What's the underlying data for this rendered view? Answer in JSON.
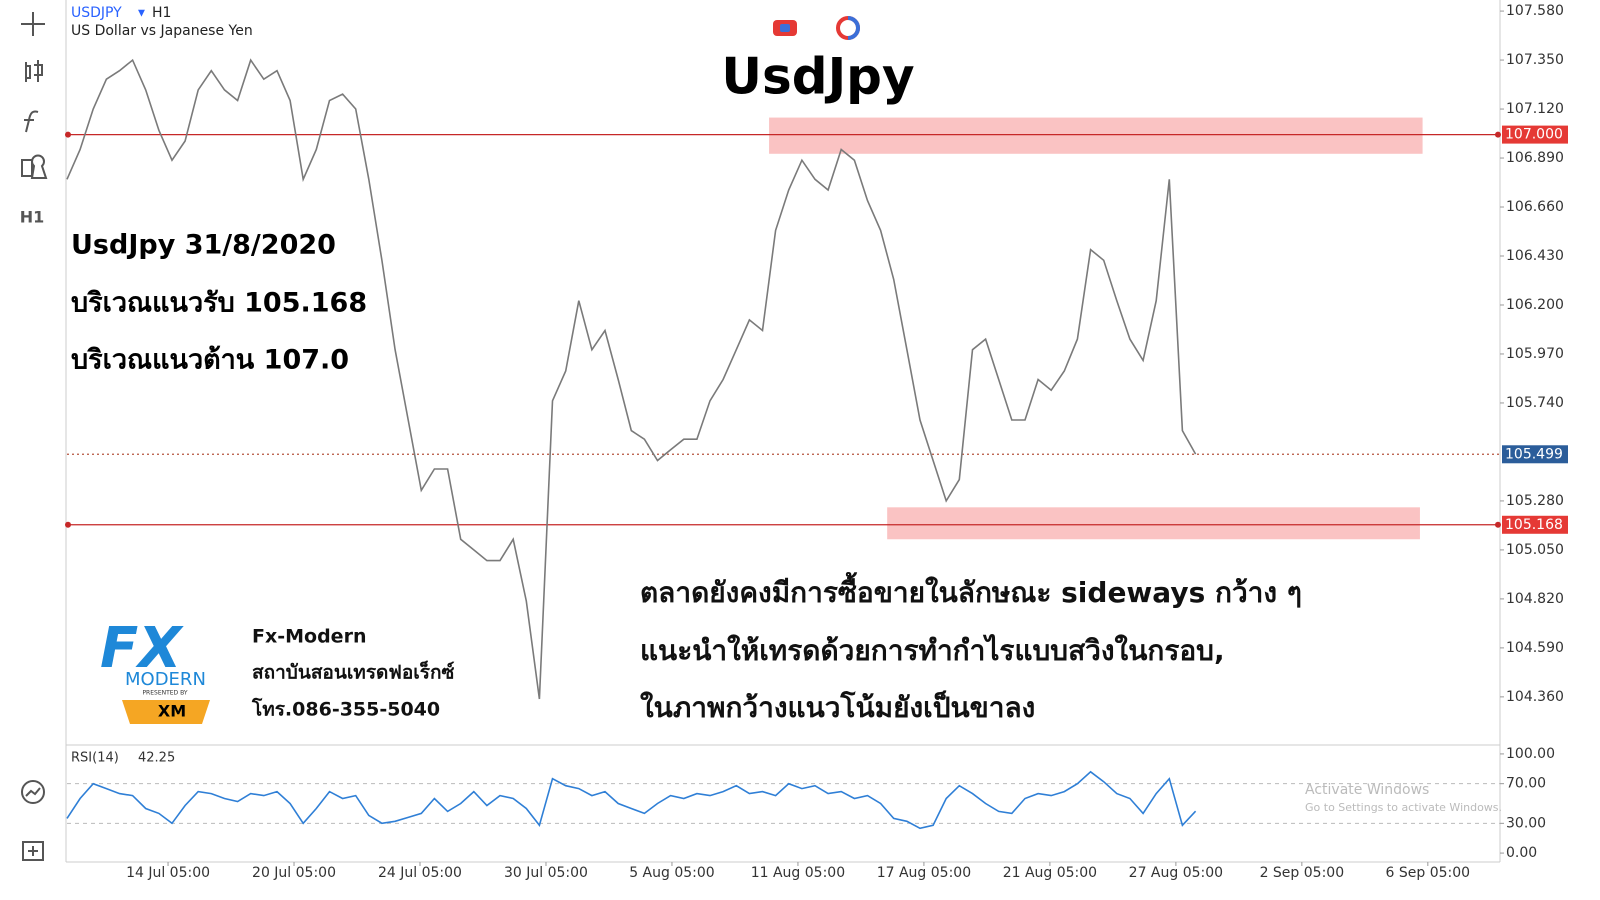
{
  "header": {
    "symbol": "USDJPY",
    "timeframe": "H1",
    "description": "US Dollar vs Japanese Yen"
  },
  "toolbar": {
    "timeframe": "H1"
  },
  "annotations": {
    "heading": "UsdJpy",
    "left_lines": [
      "UsdJpy 31/8/2020",
      "บริเวณแนวรับ 105.168",
      "บริเวณแนวต้าน 107.0"
    ],
    "bottom_lines": [
      "ตลาดยังคงมีการซื้อขายในลักษณะ sideways กว้าง ๆ",
      "แนะนำให้เทรดด้วยการทำกำไรแบบสวิงในกรอบ,",
      "ในภาพกว้างแนวโน้มยังเป็นขาลง"
    ]
  },
  "logo": {
    "mark": "FX",
    "word": "MODERN",
    "presented": "PRESENTED BY",
    "broker": "XM",
    "lines": [
      "Fx-Modern",
      "สถาบันสอนเทรดฟอเร็กซ์",
      "โทร.086-355-5040"
    ]
  },
  "watermark": {
    "title": "Activate Windows",
    "text": "Go to Settings to activate Windows."
  },
  "chart_data": [
    {
      "type": "line",
      "x": [
        0,
        10,
        20,
        30,
        40,
        50,
        60,
        70,
        80,
        90,
        100,
        110,
        120,
        130,
        140,
        150,
        160,
        170,
        180,
        190,
        200,
        210,
        220,
        230,
        240,
        250,
        260,
        270,
        280,
        290,
        300,
        310,
        320,
        330,
        340,
        350,
        360,
        370,
        380,
        390,
        400,
        410,
        420,
        430,
        440,
        450,
        460,
        470,
        480,
        490,
        500,
        510,
        520,
        530,
        540,
        550,
        560,
        570,
        580,
        590,
        600,
        610,
        620,
        630,
        640,
        650,
        660,
        670,
        680,
        690,
        700,
        710,
        720,
        730,
        740,
        750,
        760,
        770,
        780,
        790,
        800,
        810,
        820,
        830,
        840,
        850,
        860
      ],
      "series": [
        {
          "color": "#7a7a7a",
          "values": [
            106.79,
            106.93,
            107.12,
            107.26,
            107.3,
            107.35,
            107.21,
            107.02,
            106.88,
            106.97,
            107.21,
            107.3,
            107.21,
            107.16,
            107.35,
            107.26,
            107.3,
            107.16,
            106.79,
            106.93,
            107.16,
            107.19,
            107.12,
            106.79,
            106.41,
            105.99,
            105.66,
            105.33,
            105.43,
            105.43,
            105.1,
            105.05,
            105.0,
            105.0,
            105.1,
            104.81,
            104.35,
            105.75,
            105.89,
            106.22,
            105.99,
            106.08,
            105.85,
            105.61,
            105.57,
            105.47,
            105.52,
            105.57,
            105.57,
            105.75,
            105.85,
            105.99,
            106.13,
            106.08,
            106.55,
            106.74,
            106.88,
            106.79,
            106.74,
            106.93,
            106.88,
            106.69,
            106.55,
            106.32,
            105.99,
            105.66,
            105.47,
            105.28,
            105.38,
            105.99,
            106.04,
            105.85,
            105.66,
            105.66,
            105.85,
            105.8,
            105.89,
            106.04,
            106.46,
            106.41,
            106.22,
            106.04,
            105.94,
            106.22,
            106.79,
            105.61,
            105.5
          ]
        }
      ],
      "xlim": [
        0,
        1092
      ],
      "ylim": [
        104.134,
        107.632
      ],
      "yticks": [
        {
          "value": 107.58,
          "label": "107.580"
        },
        {
          "value": 107.35,
          "label": "107.350"
        },
        {
          "value": 107.12,
          "label": "107.120"
        },
        {
          "value": 106.89,
          "label": "106.890"
        },
        {
          "value": 106.66,
          "label": "106.660"
        },
        {
          "value": 106.43,
          "label": "106.430"
        },
        {
          "value": 106.2,
          "label": "106.200"
        },
        {
          "value": 105.97,
          "label": "105.970"
        },
        {
          "value": 105.74,
          "label": "105.740"
        },
        {
          "value": 105.28,
          "label": "105.280"
        },
        {
          "value": 105.05,
          "label": "105.050"
        },
        {
          "value": 104.82,
          "label": "104.820"
        },
        {
          "value": 104.59,
          "label": "104.590"
        },
        {
          "value": 104.36,
          "label": "104.360"
        }
      ],
      "levels": [
        {
          "value": 107.0,
          "label": "107.000",
          "line_color": "#c62828",
          "box_color": "#e53935",
          "dashed": false
        },
        {
          "value": 105.168,
          "label": "105.168",
          "line_color": "#c62828",
          "box_color": "#e53935",
          "dashed": false
        },
        {
          "value": 105.499,
          "label": "105.499",
          "line_color": "#b5533c",
          "box_color": "#2b5d9a",
          "dashed": true
        }
      ],
      "zones": [
        {
          "x": [
            535,
            1033
          ],
          "y": [
            106.91,
            107.08
          ],
          "color": "#f9b4b4"
        },
        {
          "x": [
            625,
            1031
          ],
          "y": [
            105.1,
            105.25
          ],
          "color": "#f9b4b4"
        }
      ]
    },
    {
      "type": "line",
      "indicator": "RSI(14)",
      "x": [
        0,
        10,
        20,
        30,
        40,
        50,
        60,
        70,
        80,
        90,
        100,
        110,
        120,
        130,
        140,
        150,
        160,
        170,
        180,
        190,
        200,
        210,
        220,
        230,
        240,
        250,
        260,
        270,
        280,
        290,
        300,
        310,
        320,
        330,
        340,
        350,
        360,
        370,
        380,
        390,
        400,
        410,
        420,
        430,
        440,
        450,
        460,
        470,
        480,
        490,
        500,
        510,
        520,
        530,
        540,
        550,
        560,
        570,
        580,
        590,
        600,
        610,
        620,
        630,
        640,
        650,
        660,
        670,
        680,
        690,
        700,
        710,
        720,
        730,
        740,
        750,
        760,
        770,
        780,
        790,
        800,
        810,
        820,
        830,
        840,
        850,
        860
      ],
      "series": [
        {
          "color": "#2f7fd6",
          "values": [
            35,
            55,
            70,
            65,
            60,
            58,
            45,
            40,
            30,
            48,
            62,
            60,
            55,
            52,
            60,
            58,
            62,
            50,
            30,
            45,
            62,
            55,
            58,
            38,
            30,
            32,
            36,
            40,
            55,
            42,
            50,
            62,
            48,
            58,
            55,
            45,
            28,
            75,
            68,
            65,
            58,
            62,
            50,
            45,
            40,
            50,
            58,
            55,
            60,
            58,
            62,
            68,
            60,
            62,
            58,
            70,
            65,
            68,
            60,
            62,
            55,
            58,
            50,
            35,
            32,
            25,
            28,
            55,
            68,
            60,
            50,
            42,
            40,
            55,
            60,
            58,
            62,
            70,
            82,
            72,
            60,
            55,
            40,
            60,
            75,
            28,
            42.25
          ]
        }
      ],
      "xlim": [
        0,
        1092
      ],
      "ylim": [
        -9,
        109
      ],
      "yticks": [
        {
          "value": 100,
          "label": "100.00"
        },
        {
          "value": 70,
          "label": "70.00"
        },
        {
          "value": 30,
          "label": "30.00"
        },
        {
          "value": 0,
          "label": "0.00"
        }
      ],
      "dashed_ticks": [
        70,
        30
      ],
      "xticks": [
        {
          "value": 77,
          "label": "14 Jul 05:00"
        },
        {
          "value": 173,
          "label": "20 Jul 05:00"
        },
        {
          "value": 269,
          "label": "24 Jul 05:00"
        },
        {
          "value": 365,
          "label": "30 Jul 05:00"
        },
        {
          "value": 461,
          "label": "5 Aug 05:00"
        },
        {
          "value": 557,
          "label": "11 Aug 05:00"
        },
        {
          "value": 653,
          "label": "17 Aug 05:00"
        },
        {
          "value": 749,
          "label": "21 Aug 05:00"
        },
        {
          "value": 845,
          "label": "27 Aug 05:00"
        },
        {
          "value": 941,
          "label": "2 Sep 05:00"
        },
        {
          "value": 1037,
          "label": "6 Sep 05:00"
        }
      ]
    }
  ]
}
